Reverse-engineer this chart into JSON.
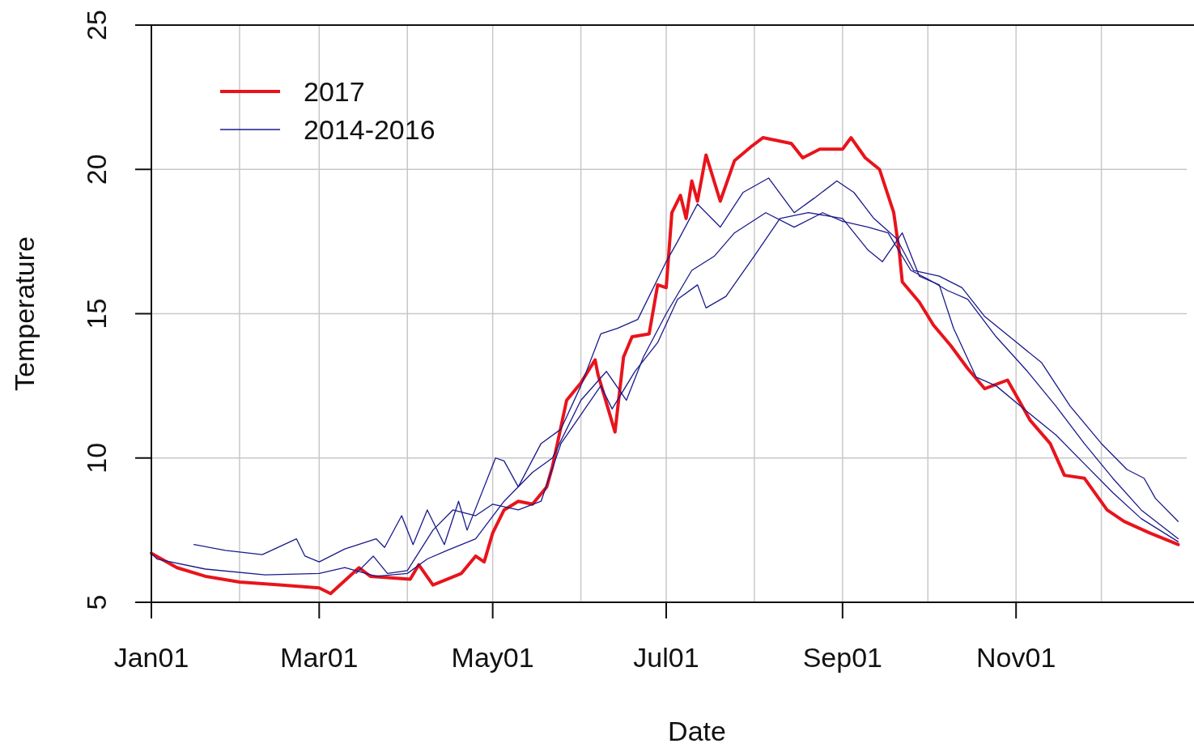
{
  "chart_data": {
    "type": "line",
    "xlabel": "Date",
    "ylabel": "Temperature",
    "xlim": [
      "--01-01",
      "--12-31"
    ],
    "ylim": [
      5,
      25
    ],
    "yticks": [
      5,
      10,
      15,
      20,
      25
    ],
    "xticks": [
      {
        "value": "--01-01",
        "label": "Jan01"
      },
      {
        "value": "--02-01",
        "label": null
      },
      {
        "value": "--03-01",
        "label": "Mar01"
      },
      {
        "value": "--04-01",
        "label": null
      },
      {
        "value": "--05-01",
        "label": "May01"
      },
      {
        "value": "--06-01",
        "label": null
      },
      {
        "value": "--07-01",
        "label": "Jul01"
      },
      {
        "value": "--08-01",
        "label": null
      },
      {
        "value": "--09-01",
        "label": "Sep01"
      },
      {
        "value": "--10-01",
        "label": null
      },
      {
        "value": "--11-01",
        "label": "Nov01"
      },
      {
        "value": "--12-01",
        "label": null
      }
    ],
    "grid": true,
    "legend": "top left",
    "series": [
      {
        "name": "2017",
        "color": "#e8141c",
        "x": [
          "--01-01",
          "--01-10",
          "--01-20",
          "--02-01",
          "--02-15",
          "--03-01",
          "--03-05",
          "--03-15",
          "--03-19",
          "--04-02",
          "--04-05",
          "--04-10",
          "--04-20",
          "--04-25",
          "--04-28",
          "--05-01",
          "--05-05",
          "--05-10",
          "--05-15",
          "--05-20",
          "--05-22",
          "--05-27",
          "--06-01",
          "--06-06",
          "--06-07",
          "--06-13",
          "--06-16",
          "--06-19",
          "--06-25",
          "--06-28",
          "--07-01",
          "--07-03",
          "--07-06",
          "--07-08",
          "--07-10",
          "--07-12",
          "--07-15",
          "--07-20",
          "--07-25",
          "--07-31",
          "--08-04",
          "--08-14",
          "--08-18",
          "--08-24",
          "--09-01",
          "--09-04",
          "--09-09",
          "--09-14",
          "--09-19",
          "--09-21",
          "--09-22",
          "--09-28",
          "--10-03",
          "--10-09",
          "--10-15",
          "--10-21",
          "--10-29",
          "--11-06",
          "--11-13",
          "--11-18",
          "--11-25",
          "--12-03",
          "--12-09",
          "--12-18",
          "--12-28"
        ],
        "values": [
          6.7,
          6.2,
          5.9,
          5.7,
          5.6,
          5.5,
          5.3,
          6.2,
          5.9,
          5.8,
          6.3,
          5.6,
          6.0,
          6.6,
          6.4,
          7.4,
          8.2,
          8.5,
          8.4,
          9.0,
          9.7,
          12.0,
          12.6,
          13.4,
          12.9,
          10.9,
          13.5,
          14.2,
          14.3,
          16.0,
          15.9,
          18.5,
          19.1,
          18.3,
          19.6,
          18.9,
          20.5,
          18.9,
          20.3,
          20.8,
          21.1,
          20.9,
          20.4,
          20.7,
          20.7,
          21.1,
          20.4,
          20.0,
          18.5,
          17.1,
          16.1,
          15.4,
          14.6,
          13.9,
          13.1,
          12.4,
          12.7,
          11.3,
          10.5,
          9.4,
          9.3,
          8.2,
          7.8,
          7.4,
          7.0
        ]
      },
      {
        "name": "2014-2016",
        "color": "#1a1a8c",
        "x": [
          "--01-16",
          "--01-27",
          "--02-09",
          "--02-21",
          "--02-24",
          "--03-01",
          "--03-10",
          "--03-21",
          "--03-24",
          "--03-30",
          "--04-03",
          "--04-08",
          "--04-14",
          "--04-19",
          "--04-22",
          "--05-02",
          "--05-05",
          "--05-10",
          "--05-18",
          "--05-25",
          "--06-01",
          "--06-08",
          "--06-14",
          "--06-21",
          "--07-01",
          "--07-05",
          "--07-12",
          "--07-20",
          "--07-28",
          "--08-06",
          "--08-15",
          "--08-22",
          "--08-30",
          "--09-05",
          "--09-12",
          "--09-20",
          "--09-26",
          "--10-05",
          "--10-13",
          "--10-21",
          "--10-31",
          "--11-10",
          "--11-20",
          "--12-01",
          "--12-10",
          "--12-16",
          "--12-20",
          "--12-28"
        ],
        "values": [
          7.0,
          6.8,
          6.65,
          7.2,
          6.6,
          6.4,
          6.85,
          7.2,
          6.9,
          8.0,
          7.0,
          8.2,
          7.0,
          8.5,
          7.5,
          10.0,
          9.9,
          9.0,
          10.5,
          11.0,
          12.5,
          14.3,
          14.5,
          14.8,
          16.8,
          17.5,
          18.8,
          18.0,
          19.2,
          19.7,
          18.5,
          19.0,
          19.6,
          19.2,
          18.3,
          17.6,
          16.5,
          16.3,
          15.9,
          14.9,
          14.1,
          13.3,
          11.8,
          10.5,
          9.6,
          9.3,
          8.6,
          7.8
        ]
      },
      {
        "color": "#1a1a8c",
        "x": [
          "--01-01",
          "--01-03",
          "--01-20",
          "--02-10",
          "--03-01",
          "--03-10",
          "--03-21",
          "--04-01",
          "--04-08",
          "--04-15",
          "--04-25",
          "--05-05",
          "--05-15",
          "--05-22",
          "--06-01",
          "--06-10",
          "--06-17",
          "--06-23",
          "--07-01",
          "--07-10",
          "--07-18",
          "--07-25",
          "--08-05",
          "--08-15",
          "--08-25",
          "--09-01",
          "--09-10",
          "--09-17",
          "--09-25",
          "--10-01",
          "--10-08",
          "--10-15",
          "--10-25",
          "--11-05",
          "--11-15",
          "--11-25",
          "--12-05",
          "--12-15",
          "--12-28"
        ],
        "values": [
          6.7,
          6.5,
          6.15,
          5.95,
          6.0,
          6.2,
          5.9,
          6.0,
          6.5,
          6.8,
          7.2,
          8.5,
          9.5,
          10.0,
          12.0,
          13.0,
          12.0,
          13.5,
          15.0,
          16.5,
          17.0,
          17.8,
          18.5,
          18.0,
          18.5,
          18.2,
          18.0,
          17.8,
          16.5,
          16.2,
          15.8,
          15.5,
          14.2,
          13.0,
          11.8,
          10.5,
          9.3,
          8.2,
          7.2
        ]
      },
      {
        "color": "#1a1a8c",
        "x": [
          "--03-14",
          "--03-20",
          "--03-25",
          "--04-01",
          "--04-10",
          "--04-17",
          "--04-25",
          "--05-01",
          "--05-10",
          "--05-18",
          "--05-25",
          "--06-01",
          "--06-08",
          "--06-12",
          "--06-20",
          "--06-28",
          "--07-05",
          "--07-12",
          "--07-15",
          "--07-22",
          "--08-01",
          "--08-10",
          "--08-20",
          "--09-01",
          "--09-10",
          "--09-15",
          "--09-22",
          "--09-28",
          "--10-05",
          "--10-10",
          "--10-18",
          "--10-25",
          "--11-05",
          "--11-15",
          "--11-25",
          "--12-05",
          "--12-15",
          "--12-28"
        ],
        "values": [
          6.0,
          6.6,
          6.0,
          6.1,
          7.5,
          8.2,
          8.0,
          8.4,
          8.2,
          8.5,
          10.5,
          11.5,
          12.5,
          11.7,
          13.0,
          14.0,
          15.5,
          16.0,
          15.2,
          15.6,
          17.0,
          18.3,
          18.5,
          18.3,
          17.2,
          16.8,
          17.8,
          16.3,
          16.0,
          14.5,
          12.8,
          12.5,
          11.6,
          10.8,
          9.8,
          8.8,
          7.9,
          7.1
        ]
      }
    ]
  }
}
